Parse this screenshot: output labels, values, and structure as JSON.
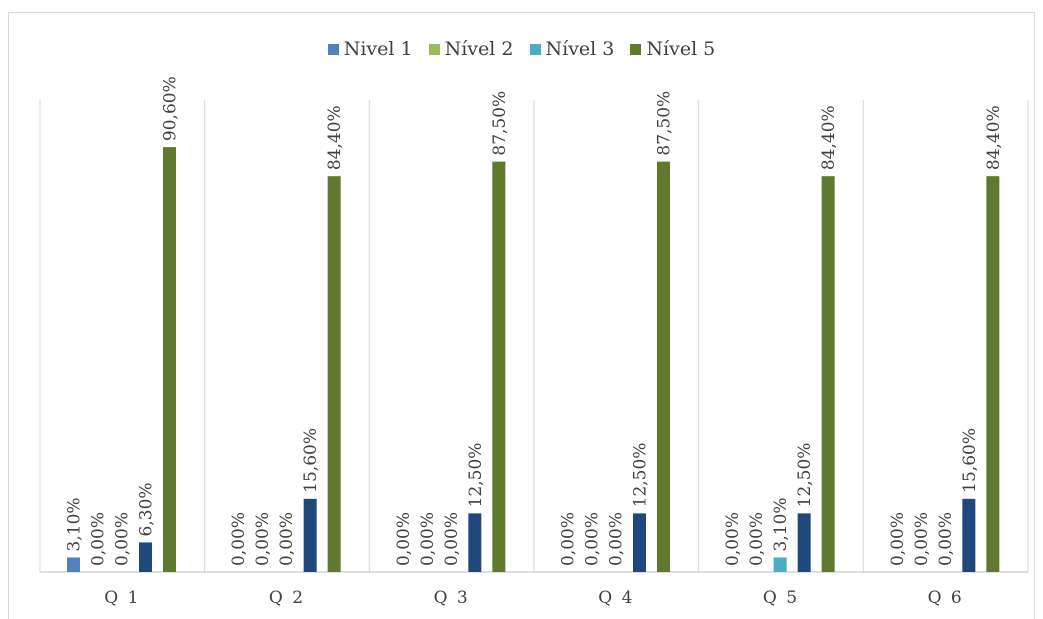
{
  "chart_data": {
    "type": "bar",
    "categories": [
      "Q1",
      "Q2",
      "Q3",
      "Q4",
      "Q5",
      "Q6"
    ],
    "tick_labels": [
      "Q 1",
      "Q 2",
      "Q 3",
      "Q 4",
      "Q 5",
      "Q 6"
    ],
    "series": [
      {
        "name": "Nivel 1",
        "color": "#4f81bd",
        "values": [
          3.1,
          0,
          0,
          0,
          0,
          0
        ],
        "labels": [
          "3,10%",
          "0,00%",
          "0,00%",
          "0,00%",
          "0,00%",
          "0,00%"
        ]
      },
      {
        "name": "Nível 2",
        "color": "#9bbb59",
        "values": [
          0,
          0,
          0,
          0,
          0,
          0
        ],
        "labels": [
          "0,00%",
          "0,00%",
          "0,00%",
          "0,00%",
          "0,00%",
          "0,00%"
        ]
      },
      {
        "name": "Nível 3",
        "color": "#4bacc6",
        "values": [
          0,
          0,
          0,
          0,
          3.1,
          0
        ],
        "labels": [
          "0,00%",
          "0,00%",
          "0,00%",
          "0,00%",
          "3,10%",
          "0,00%"
        ]
      },
      {
        "name": "",
        "color": "#1f497d",
        "values": [
          6.3,
          15.6,
          12.5,
          12.5,
          12.5,
          15.6
        ],
        "labels": [
          "6,30%",
          "15,60%",
          "12,50%",
          "12,50%",
          "12,50%",
          "15,60%"
        ]
      },
      {
        "name": "Nível 5",
        "color": "#5f7a2e",
        "values": [
          90.6,
          84.4,
          87.5,
          87.5,
          84.4,
          84.4
        ],
        "labels": [
          "90,60%",
          "84,40%",
          "87,50%",
          "87,50%",
          "84,40%",
          "84,40%"
        ]
      }
    ],
    "ylim": [
      0,
      100
    ],
    "grid": false,
    "legend_position": "top"
  }
}
